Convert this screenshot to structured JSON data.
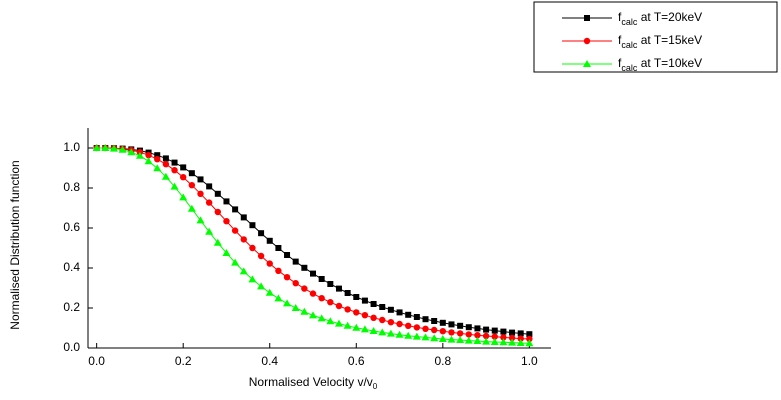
{
  "chart_data": {
    "type": "line",
    "xlabel": [
      "Normalised Velocity v/v",
      "0"
    ],
    "ylabel": "Normalised Distribution function",
    "x": [
      0,
      0.02,
      0.04,
      0.06,
      0.08,
      0.1,
      0.12,
      0.14,
      0.16,
      0.18,
      0.2,
      0.22,
      0.24,
      0.26,
      0.28,
      0.3,
      0.32,
      0.34,
      0.36,
      0.38,
      0.4,
      0.42,
      0.44,
      0.46,
      0.48,
      0.5,
      0.52,
      0.54,
      0.56,
      0.58,
      0.6,
      0.62,
      0.64,
      0.66,
      0.68,
      0.7,
      0.72,
      0.74,
      0.76,
      0.78,
      0.8,
      0.82,
      0.84,
      0.86,
      0.88,
      0.9,
      0.92,
      0.94,
      0.96,
      0.98,
      1.0
    ],
    "series": [
      {
        "name": [
          "f",
          "calc",
          " at T=20keV"
        ],
        "color": "#000000",
        "marker": "square",
        "values": [
          1,
          1,
          0.999,
          0.997,
          0.993,
          0.987,
          0.977,
          0.964,
          0.948,
          0.927,
          0.903,
          0.874,
          0.843,
          0.808,
          0.771,
          0.733,
          0.693,
          0.653,
          0.614,
          0.574,
          0.536,
          0.5,
          0.465,
          0.432,
          0.401,
          0.372,
          0.345,
          0.32,
          0.297,
          0.275,
          0.255,
          0.237,
          0.22,
          0.205,
          0.191,
          0.178,
          0.166,
          0.155,
          0.144,
          0.135,
          0.126,
          0.118,
          0.111,
          0.104,
          0.098,
          0.092,
          0.087,
          0.082,
          0.077,
          0.073,
          0.069
        ]
      },
      {
        "name": [
          "f",
          "calc",
          " at T=15keV"
        ],
        "color": "#ff0000",
        "marker": "circle",
        "values": [
          1,
          1,
          0.999,
          0.995,
          0.989,
          0.979,
          0.964,
          0.944,
          0.919,
          0.889,
          0.854,
          0.814,
          0.771,
          0.727,
          0.68,
          0.634,
          0.587,
          0.543,
          0.5,
          0.46,
          0.422,
          0.386,
          0.354,
          0.324,
          0.297,
          0.272,
          0.249,
          0.229,
          0.21,
          0.193,
          0.178,
          0.164,
          0.151,
          0.14,
          0.129,
          0.12,
          0.111,
          0.103,
          0.096,
          0.09,
          0.084,
          0.078,
          0.073,
          0.068,
          0.064,
          0.06,
          0.057,
          0.053,
          0.05,
          0.047,
          0.045
        ]
      },
      {
        "name": [
          "f",
          "calc",
          " at T=10keV"
        ],
        "color": "#00ff00",
        "marker": "triangle",
        "values": [
          1,
          1,
          0.997,
          0.991,
          0.979,
          0.961,
          0.934,
          0.899,
          0.856,
          0.807,
          0.753,
          0.696,
          0.638,
          0.581,
          0.526,
          0.475,
          0.427,
          0.383,
          0.343,
          0.308,
          0.276,
          0.248,
          0.223,
          0.2,
          0.181,
          0.163,
          0.148,
          0.134,
          0.122,
          0.111,
          0.101,
          0.093,
          0.085,
          0.078,
          0.072,
          0.066,
          0.061,
          0.057,
          0.053,
          0.049,
          0.045,
          0.042,
          0.04,
          0.037,
          0.035,
          0.032,
          0.03,
          0.029,
          0.027,
          0.025,
          0.024
        ]
      }
    ],
    "xlim": [
      -0.02,
      1.05
    ],
    "ylim": [
      0,
      1.1
    ],
    "xticks": [
      {
        "value": 0,
        "label": "0.0"
      },
      0.2,
      0.4,
      0.6,
      0.8,
      {
        "value": 1,
        "label": "1.0"
      }
    ],
    "yticks": [
      {
        "value": 0,
        "label": "0.0"
      },
      0.2,
      0.4,
      0.6,
      0.8,
      {
        "value": 1,
        "label": "1.0"
      }
    ],
    "grid": false,
    "legend": "top-right"
  }
}
